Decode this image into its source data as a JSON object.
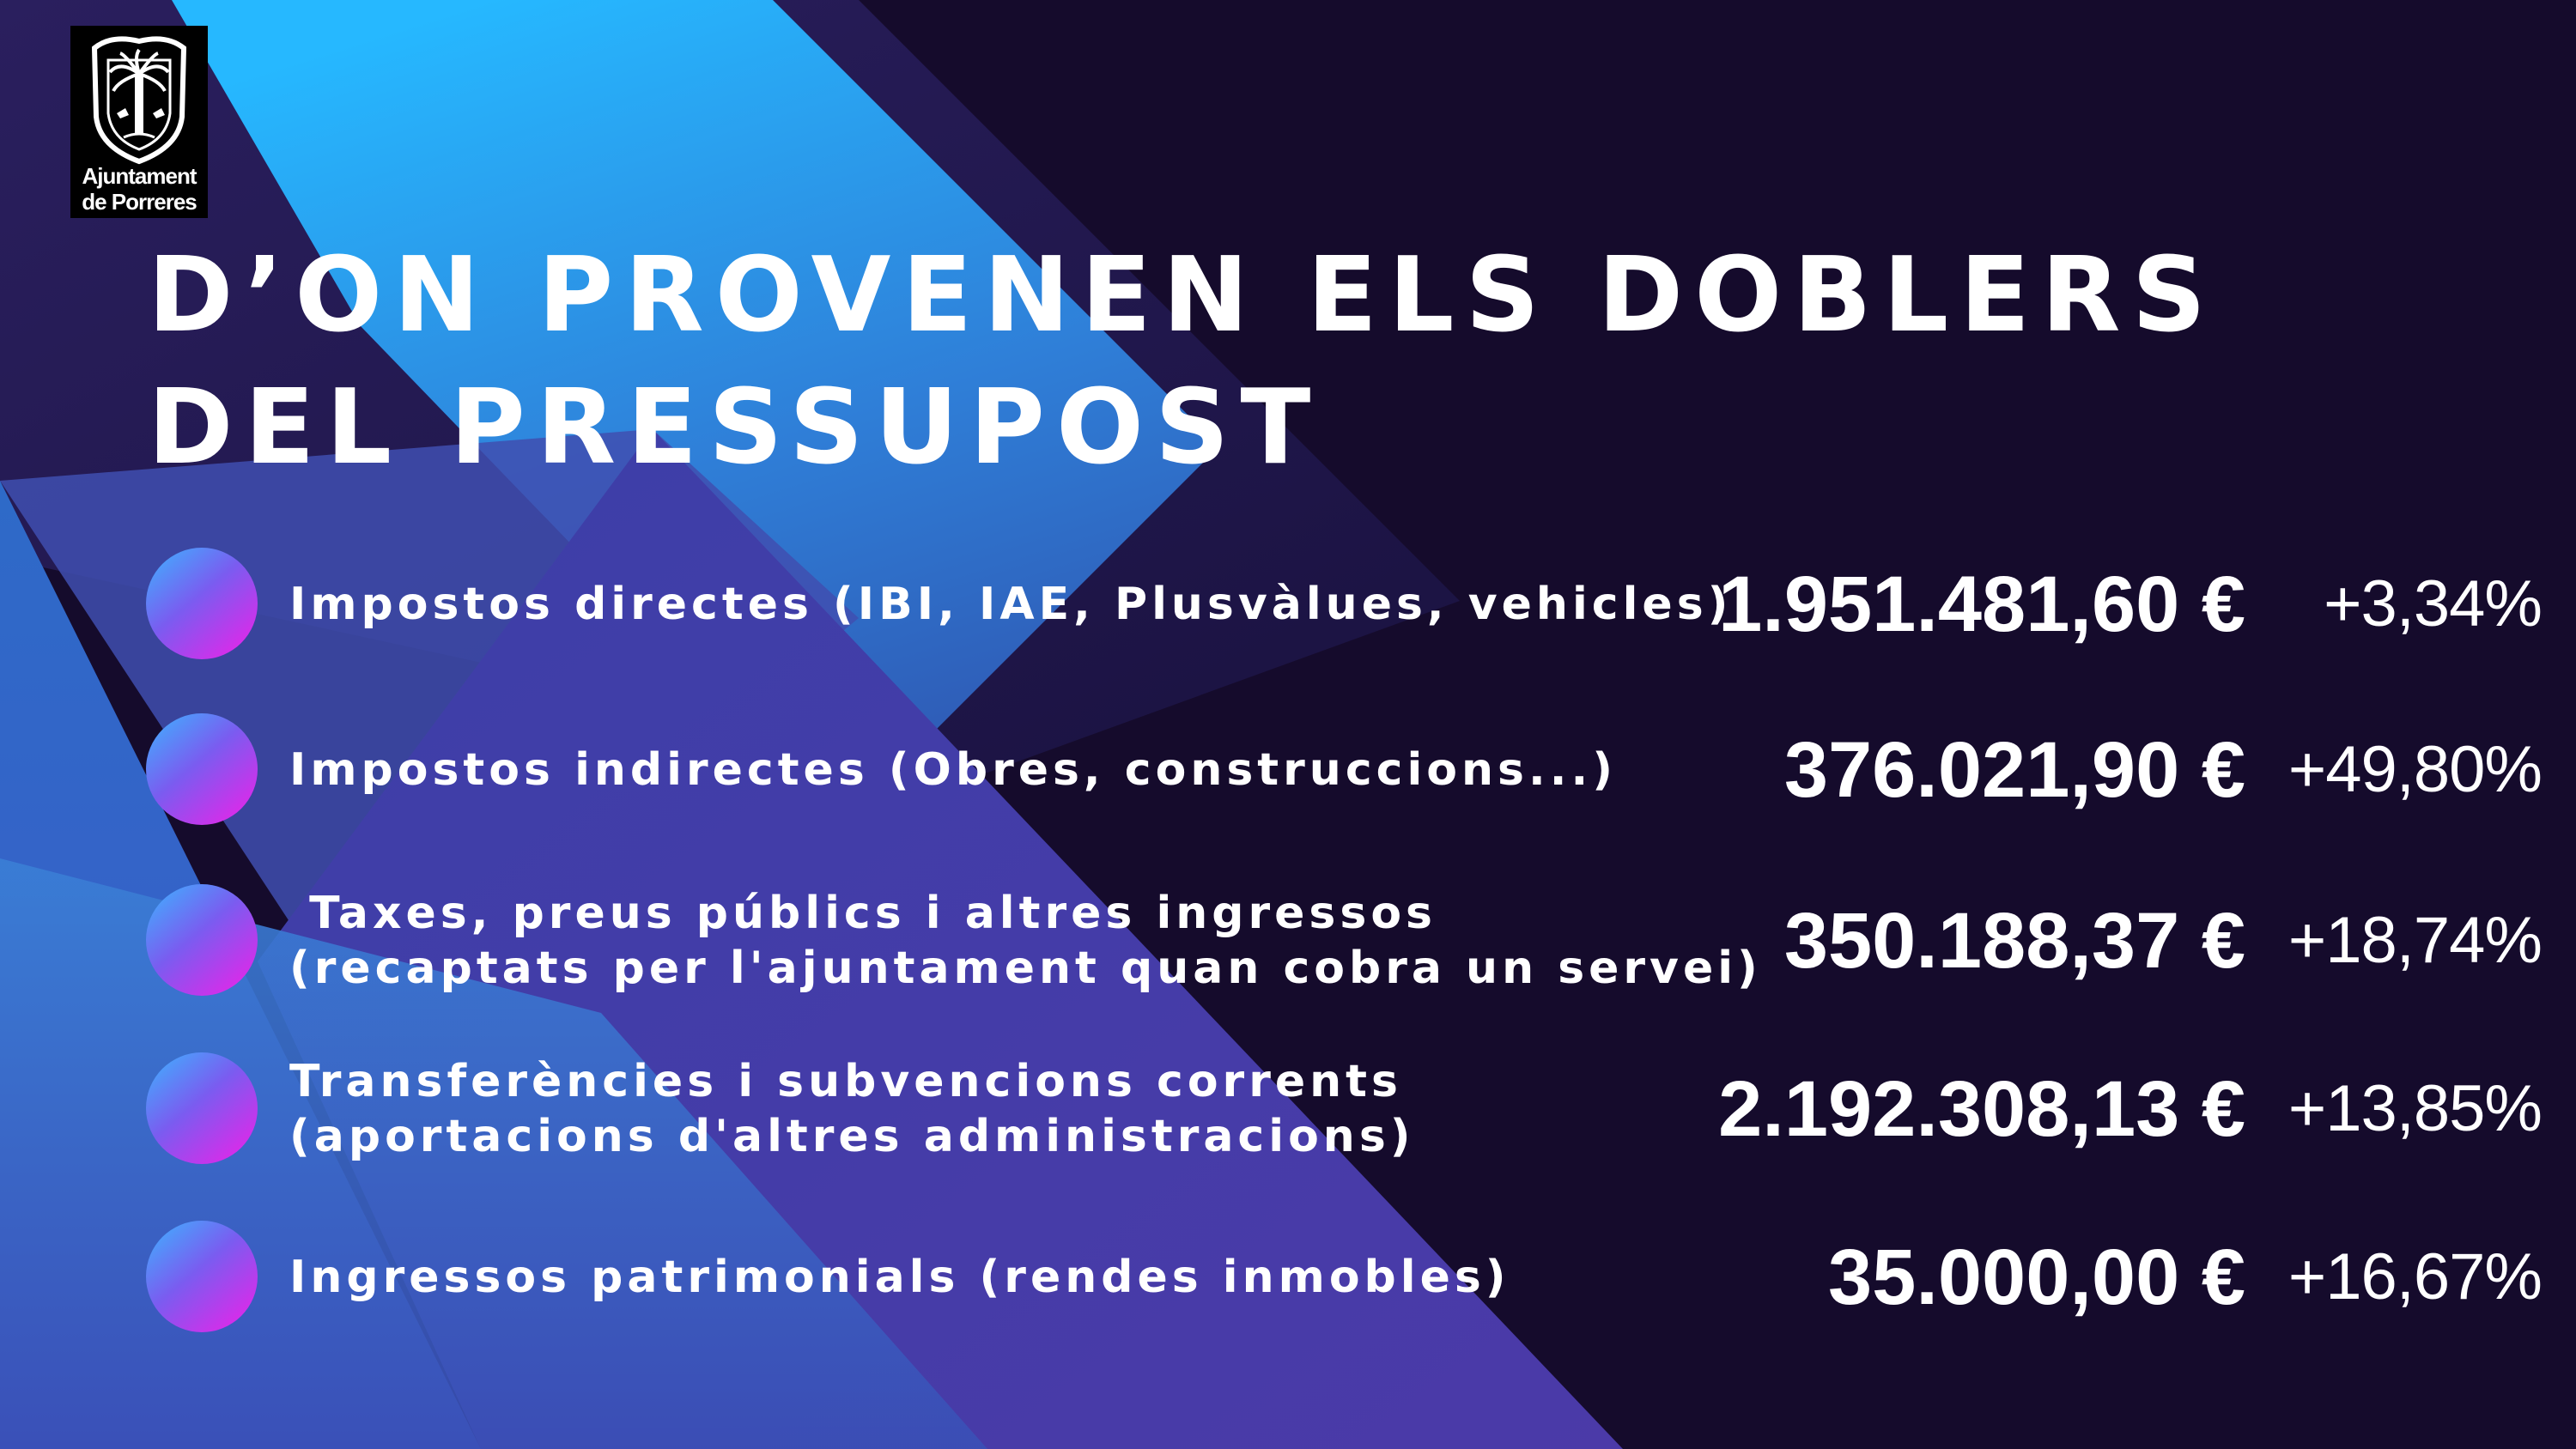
{
  "logo": {
    "line1": "Ajuntament",
    "line2": "de Porreres"
  },
  "title": {
    "line1": "D’ON PROVENEN ELS DOBLERS",
    "line2": "DEL PRESSUPOST"
  },
  "items": [
    {
      "line1": "Impostos directes (IBI, IAE, Plusvàlues, vehicles)",
      "line2": "",
      "amount": "1.951.481,60 €",
      "change": "+3,34%"
    },
    {
      "line1": "Impostos indirectes (Obres, construccions...)",
      "line2": "",
      "amount": "376.021,90 €",
      "change": "+49,80%"
    },
    {
      "line1": " Taxes, preus públics i altres ingressos",
      "line2": "(recaptats per l'ajuntament quan cobra un servei)",
      "amount": "350.188,37 €",
      "change": "+18,74%"
    },
    {
      "line1": "Transferències i subvencions corrents",
      "line2": "(aportacions d'altres administracions)",
      "amount": "2.192.308,13 €",
      "change": "+13,85%"
    },
    {
      "line1": "Ingressos patrimonials (rendes inmobles)",
      "line2": "",
      "amount": "35.000,00 €",
      "change": "+16,67%"
    }
  ],
  "colors": {
    "background": "#150b2c",
    "accent_cyan": "#2fb9ff",
    "accent_purple": "#4a3fb0",
    "bullet_top": "#3bb6ff",
    "bullet_bottom": "#f31ee8",
    "text": "#ffffff"
  }
}
